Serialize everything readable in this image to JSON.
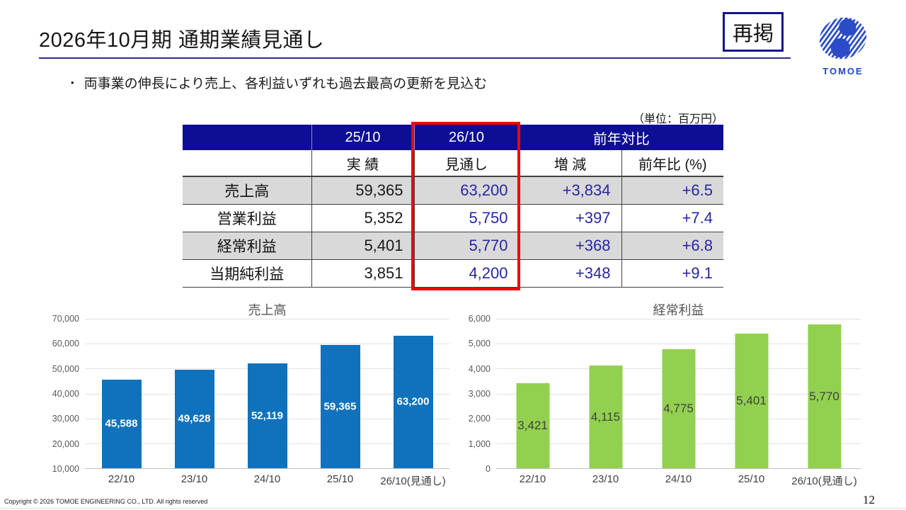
{
  "header": {
    "title": "2026年10月期 通期業績見通し",
    "badge": "再掲",
    "logo_text": "TOMOE"
  },
  "bullet": {
    "marker": "•",
    "text": "両事業の伸長により売上、各利益いずれも過去最高の更新を見込む"
  },
  "unit_note": "（単位：百万円）",
  "colors": {
    "table_header_bg": "#0D0D96",
    "table_navy_text": "#2626A5",
    "highlight_red": "#EE0505",
    "title_rule_navy": "#28289B",
    "sales_bar_blue": "#1072BC",
    "profit_bar_green": "#92D050",
    "row_shade_gray": "#D9D9D9"
  },
  "table": {
    "header_row1": {
      "col_prev": "25/10",
      "col_next": "26/10",
      "col_yoy": "前年対比"
    },
    "header_row2": {
      "col_actual": "実 績",
      "col_forecast": "見通し",
      "col_change": "増 減",
      "col_ratio": "前年比 (%)"
    },
    "rows": [
      {
        "label": "売上高",
        "actual": "59,365",
        "forecast": "63,200",
        "change": "+3,834",
        "ratio": "+6.5"
      },
      {
        "label": "営業利益",
        "actual": "5,352",
        "forecast": "5,750",
        "change": "+397",
        "ratio": "+7.4"
      },
      {
        "label": "経常利益",
        "actual": "5,401",
        "forecast": "5,770",
        "change": "+368",
        "ratio": "+6.8"
      },
      {
        "label": "当期純利益",
        "actual": "3,851",
        "forecast": "4,200",
        "change": "+348",
        "ratio": "+9.1"
      }
    ]
  },
  "chart_data": [
    {
      "type": "bar",
      "title": "売上高",
      "categories": [
        "22/10",
        "23/10",
        "24/10",
        "25/10",
        "26/10(見通し)"
      ],
      "values": [
        45588,
        49628,
        52119,
        59365,
        63200
      ],
      "value_labels": [
        "45,588",
        "49,628",
        "52,119",
        "59,365",
        "63,200"
      ],
      "ylim": [
        10000,
        70000
      ],
      "yticks": [
        "70,000",
        "60,000",
        "50,000",
        "40,000",
        "30,000",
        "20,000",
        "10,000"
      ],
      "grid": true,
      "legend": "none",
      "bar_color": "#1072BC",
      "label_color": "#FFFFFF",
      "xlabel": "",
      "ylabel": ""
    },
    {
      "type": "bar",
      "title": "経常利益",
      "categories": [
        "22/10",
        "23/10",
        "24/10",
        "25/10",
        "26/10(見通し)"
      ],
      "values": [
        3421,
        4115,
        4775,
        5401,
        5770
      ],
      "value_labels": [
        "3,421",
        "4,115",
        "4,775",
        "5,401",
        "5,770"
      ],
      "ylim": [
        0,
        6000
      ],
      "yticks": [
        "6,000",
        "5,000",
        "4,000",
        "3,000",
        "2,000",
        "1,000",
        "0"
      ],
      "grid": true,
      "legend": "none",
      "bar_color": "#92D050",
      "label_color": "#404040",
      "xlabel": "",
      "ylabel": ""
    }
  ],
  "footer": {
    "copyright": "Copyright © 2026 TOMOE ENGINEERING CO., LTD. All rights reserved",
    "page_number": "12"
  }
}
